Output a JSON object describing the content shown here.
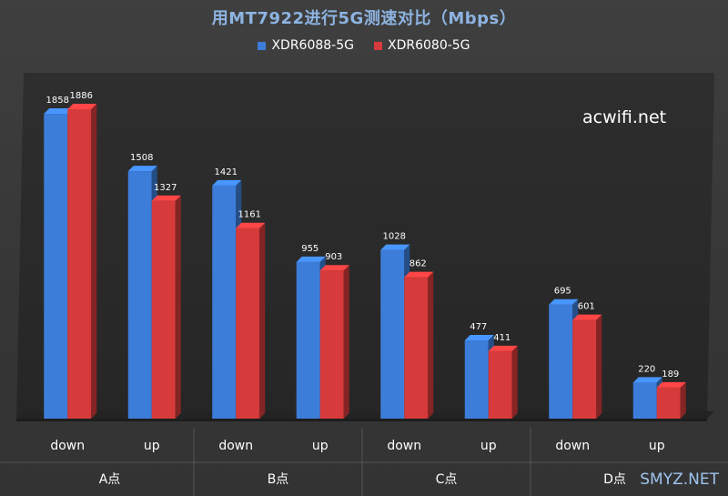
{
  "chart_data": {
    "type": "bar",
    "title": "用MT7922进行5G测速对比（Mbps）",
    "groups": [
      "A点",
      "B点",
      "C点",
      "D点"
    ],
    "categories": [
      "down",
      "up",
      "down",
      "up",
      "down",
      "up",
      "down",
      "up"
    ],
    "series": [
      {
        "name": "XDR6088-5G",
        "color": "#3c7dd9",
        "values": [
          1858,
          1508,
          1421,
          955,
          1028,
          477,
          695,
          220
        ]
      },
      {
        "name": "XDR6080-5G",
        "color": "#d63a3a",
        "values": [
          1886,
          1327,
          1161,
          903,
          862,
          411,
          601,
          189
        ]
      }
    ],
    "ylim": [
      0,
      1886
    ],
    "grid": false,
    "legend_position": "top"
  },
  "watermark": "acwifi.net",
  "corner_mark": "SMYZ.NET"
}
